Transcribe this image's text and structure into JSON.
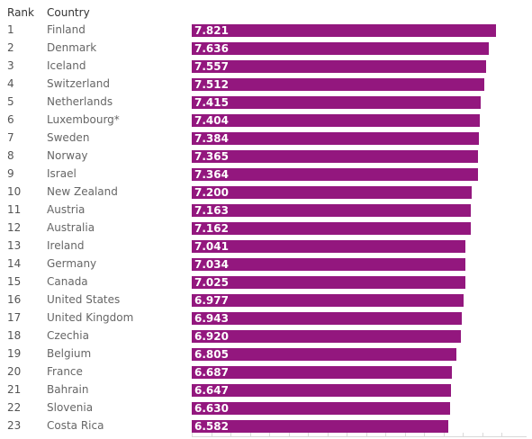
{
  "header": {
    "rank_label": "Rank",
    "country_label": "Country"
  },
  "colors": {
    "bar": "#93177e",
    "bar_label": "#ffffff"
  },
  "chart_data": {
    "type": "bar",
    "orientation": "horizontal",
    "title": "",
    "xlabel": "",
    "ylabel": "",
    "xlim": [
      0,
      8
    ],
    "grid": false,
    "ranks": [
      "1",
      "2",
      "3",
      "4",
      "5",
      "6",
      "7",
      "8",
      "9",
      "10",
      "11",
      "12",
      "13",
      "14",
      "15",
      "16",
      "17",
      "18",
      "19",
      "20",
      "21",
      "22",
      "23"
    ],
    "categories": [
      "Finland",
      "Denmark",
      "Iceland",
      "Switzerland",
      "Netherlands",
      "Luxembourg*",
      "Sweden",
      "Norway",
      "Israel",
      "New Zealand",
      "Austria",
      "Australia",
      "Ireland",
      "Germany",
      "Canada",
      "United States",
      "United Kingdom",
      "Czechia",
      "Belgium",
      "France",
      "Bahrain",
      "Slovenia",
      "Costa Rica"
    ],
    "values": [
      7.821,
      7.636,
      7.557,
      7.512,
      7.415,
      7.404,
      7.384,
      7.365,
      7.364,
      7.2,
      7.163,
      7.162,
      7.041,
      7.034,
      7.025,
      6.977,
      6.943,
      6.92,
      6.805,
      6.687,
      6.647,
      6.63,
      6.582
    ],
    "value_labels": [
      "7.821",
      "7.636",
      "7.557",
      "7.512",
      "7.415",
      "7.404",
      "7.384",
      "7.365",
      "7.364",
      "7.200",
      "7.163",
      "7.162",
      "7.041",
      "7.034",
      "7.025",
      "6.977",
      "6.943",
      "6.920",
      "6.805",
      "6.687",
      "6.647",
      "6.630",
      "6.582"
    ]
  }
}
